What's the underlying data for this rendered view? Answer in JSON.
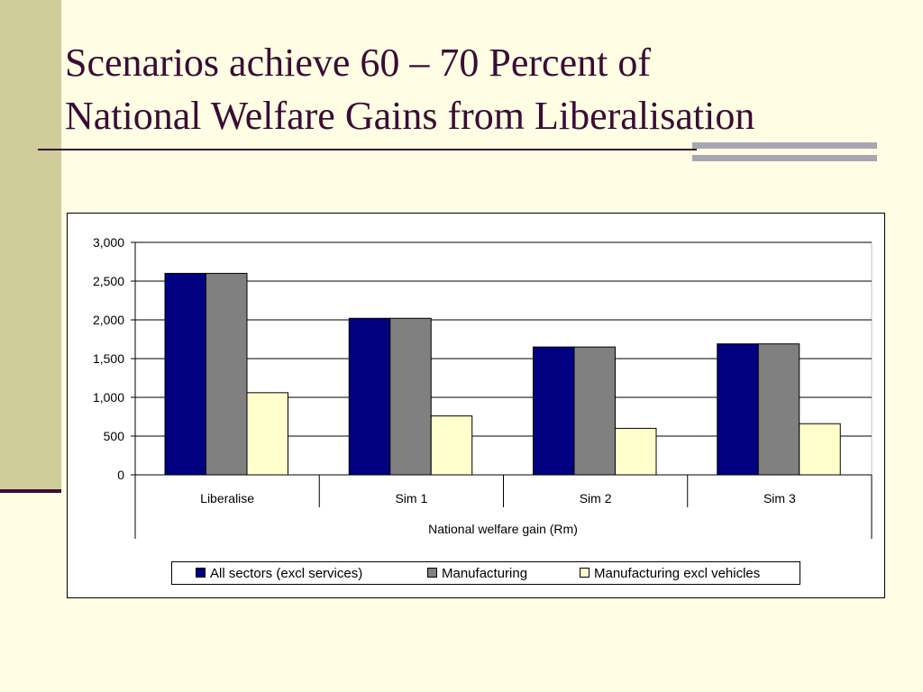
{
  "slide": {
    "title_line1": "Scenarios achieve 60 – 70 Percent of",
    "title_line2": "National Welfare Gains from Liberalisation"
  },
  "chart_data": {
    "type": "bar",
    "categories": [
      "Liberalise",
      "Sim 1",
      "Sim 2",
      "Sim 3"
    ],
    "series": [
      {
        "name": "All sectors (excl services)",
        "values": [
          2600,
          2020,
          1650,
          1690
        ],
        "color": "#000080"
      },
      {
        "name": "Manufacturing",
        "values": [
          2600,
          2020,
          1650,
          1690
        ],
        "color": "#808080"
      },
      {
        "name": "Manufacturing excl vehicles",
        "values": [
          1060,
          760,
          600,
          660
        ],
        "color": "#FFFFCC"
      }
    ],
    "xlabel": "National welfare gain (Rm)",
    "ylim": [
      0,
      3000
    ],
    "yticks": [
      "0",
      "500",
      "1,000",
      "1,500",
      "2,000",
      "2,500",
      "3,000"
    ],
    "ytick_values": [
      0,
      500,
      1000,
      1500,
      2000,
      2500,
      3000
    ],
    "grid": true,
    "legend_position": "bottom"
  }
}
